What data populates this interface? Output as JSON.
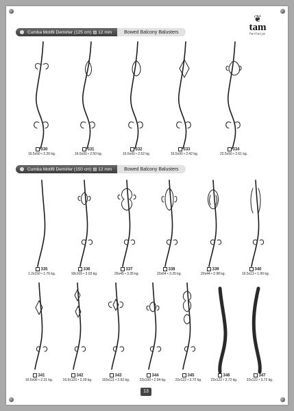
{
  "header": {
    "section1_tr": "Cumba Motifli Demirler (125 cm) ▨ 12 mm",
    "section1_en": "Bowed Balcony Balusters",
    "section2_tr": "Cumba Motifli Demirler (150 cm) ▨ 12 mm",
    "section2_en": "Bowed Balcony Balusters"
  },
  "logo": {
    "name": "tam",
    "sub": "ferforje"
  },
  "row1": [
    {
      "code": "330",
      "spec": "16.5x90 • 2.26 kg."
    },
    {
      "code": "331",
      "spec": "16.5x90 • 2.50 kg."
    },
    {
      "code": "332",
      "spec": "16.5x90 • 2.52 kg."
    },
    {
      "code": "333",
      "spec": "16.5x90 • 2.42 kg."
    },
    {
      "code": "334",
      "spec": "22.5x90 • 2.61 kg."
    }
  ],
  "row2": [
    {
      "code": "335",
      "spec": "1.2x150 • 1.76 kg."
    },
    {
      "code": "336",
      "spec": "18x109 • 3.03 kg."
    },
    {
      "code": "337",
      "spec": "26x45 • 3.35 kg."
    },
    {
      "code": "338",
      "spec": "20x64 • 3.25 kg."
    },
    {
      "code": "339",
      "spec": "20x44 • 2.98 kg."
    },
    {
      "code": "340",
      "spec": "16.5x13 • 1.90 kg."
    }
  ],
  "row3": [
    {
      "code": "341",
      "spec": "16.5x96 • 2.31 kg."
    },
    {
      "code": "342",
      "spec": "16.5x120 • 2.29 kg."
    },
    {
      "code": "343",
      "spec": "116x111 • 2.62 kg."
    },
    {
      "code": "344",
      "spec": "22x100 • 2.94 kg."
    },
    {
      "code": "345",
      "spec": "22x122 • 3.72 kg."
    },
    {
      "code": "346",
      "spec": "22x122 • 3.72 kg."
    },
    {
      "code": "347",
      "spec": "22x122 • 3.72 kg."
    }
  ],
  "page_number": "13"
}
